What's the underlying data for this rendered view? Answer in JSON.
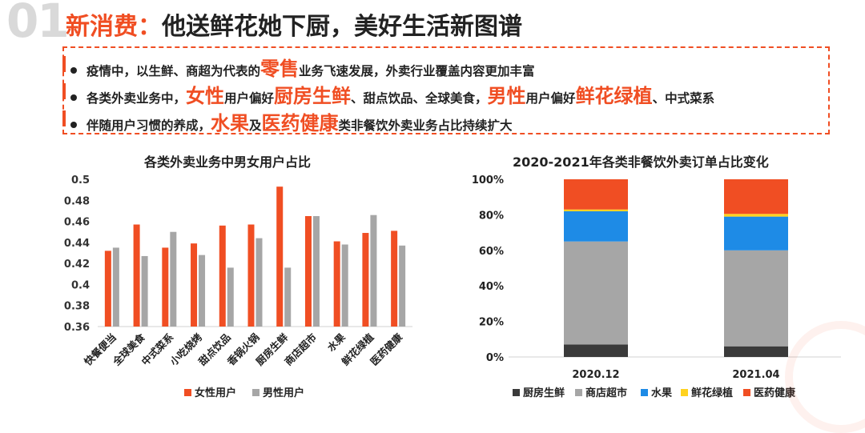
{
  "header": {
    "section_number": "01",
    "title_prefix": "新消费：",
    "title_main": "他送鲜花她下厨，美好生活新图谱"
  },
  "bullets": [
    {
      "parts": [
        {
          "text": "疫情中，以生鲜、商超为代表的",
          "hl": false
        },
        {
          "text": "零售",
          "hl": true
        },
        {
          "text": "业务飞速发展，外卖行业覆盖内容更加丰富",
          "hl": false
        }
      ]
    },
    {
      "parts": [
        {
          "text": "各类外卖业务中，",
          "hl": false
        },
        {
          "text": "女性",
          "hl": true
        },
        {
          "text": "用户偏好",
          "hl": false
        },
        {
          "text": "厨房生鲜",
          "hl": true
        },
        {
          "text": "、甜点饮品、全球美食，",
          "hl": false
        },
        {
          "text": "男性",
          "hl": true
        },
        {
          "text": "用户偏好",
          "hl": false
        },
        {
          "text": "鲜花绿植",
          "hl": true
        },
        {
          "text": "、中式菜系",
          "hl": false
        }
      ]
    },
    {
      "parts": [
        {
          "text": "伴随用户习惯的养成，",
          "hl": false
        },
        {
          "text": "水果",
          "hl": true
        },
        {
          "text": "及",
          "hl": false
        },
        {
          "text": "医药健康",
          "hl": true
        },
        {
          "text": "类非餐饮外卖业务占比持续扩大",
          "hl": false
        }
      ]
    }
  ],
  "colors": {
    "accent": "#f04e23",
    "female": "#f04e23",
    "male": "#a6a6a6"
  },
  "chart_data": [
    {
      "type": "bar",
      "title": "各类外卖业务中男女用户占比",
      "categories": [
        "快餐便当",
        "全球美食",
        "中式菜系",
        "小吃烧烤",
        "甜点饮品",
        "香锅火锅",
        "厨房生鲜",
        "商店超市",
        "水果",
        "鲜花绿植",
        "医药健康"
      ],
      "series": [
        {
          "name": "女性用户",
          "color": "#f04e23",
          "values": [
            0.432,
            0.457,
            0.435,
            0.439,
            0.456,
            0.457,
            0.493,
            0.465,
            0.441,
            0.449,
            0.451
          ]
        },
        {
          "name": "男性用户",
          "color": "#a6a6a6",
          "values": [
            0.435,
            0.427,
            0.45,
            0.428,
            0.416,
            0.444,
            0.416,
            0.465,
            0.438,
            0.466,
            0.437
          ]
        }
      ],
      "ylim": [
        0.36,
        0.5
      ],
      "yticks": [
        "0.36",
        "0.38",
        "0.4",
        "0.42",
        "0.44",
        "0.46",
        "0.48",
        "0.5"
      ],
      "legend": "bottom"
    },
    {
      "type": "bar",
      "stacked": true,
      "title": "2020-2021年各类非餐饮外卖订单占比变化",
      "categories": [
        "2020.12",
        "2021.04"
      ],
      "series": [
        {
          "name": "厨房生鲜",
          "color": "#3a3a3a",
          "values": [
            7,
            6
          ]
        },
        {
          "name": "商店超市",
          "color": "#a6a6a6",
          "values": [
            58,
            54
          ]
        },
        {
          "name": "水果",
          "color": "#1e8be6",
          "values": [
            17,
            19
          ]
        },
        {
          "name": "鲜花绿植",
          "color": "#ffd21f",
          "values": [
            1,
            1.5
          ]
        },
        {
          "name": "医药健康",
          "color": "#f04e23",
          "values": [
            17,
            19.5
          ]
        }
      ],
      "ylim": [
        0,
        100
      ],
      "yticks": [
        "0%",
        "20%",
        "40%",
        "60%",
        "80%",
        "100%"
      ],
      "legend": "bottom"
    }
  ]
}
